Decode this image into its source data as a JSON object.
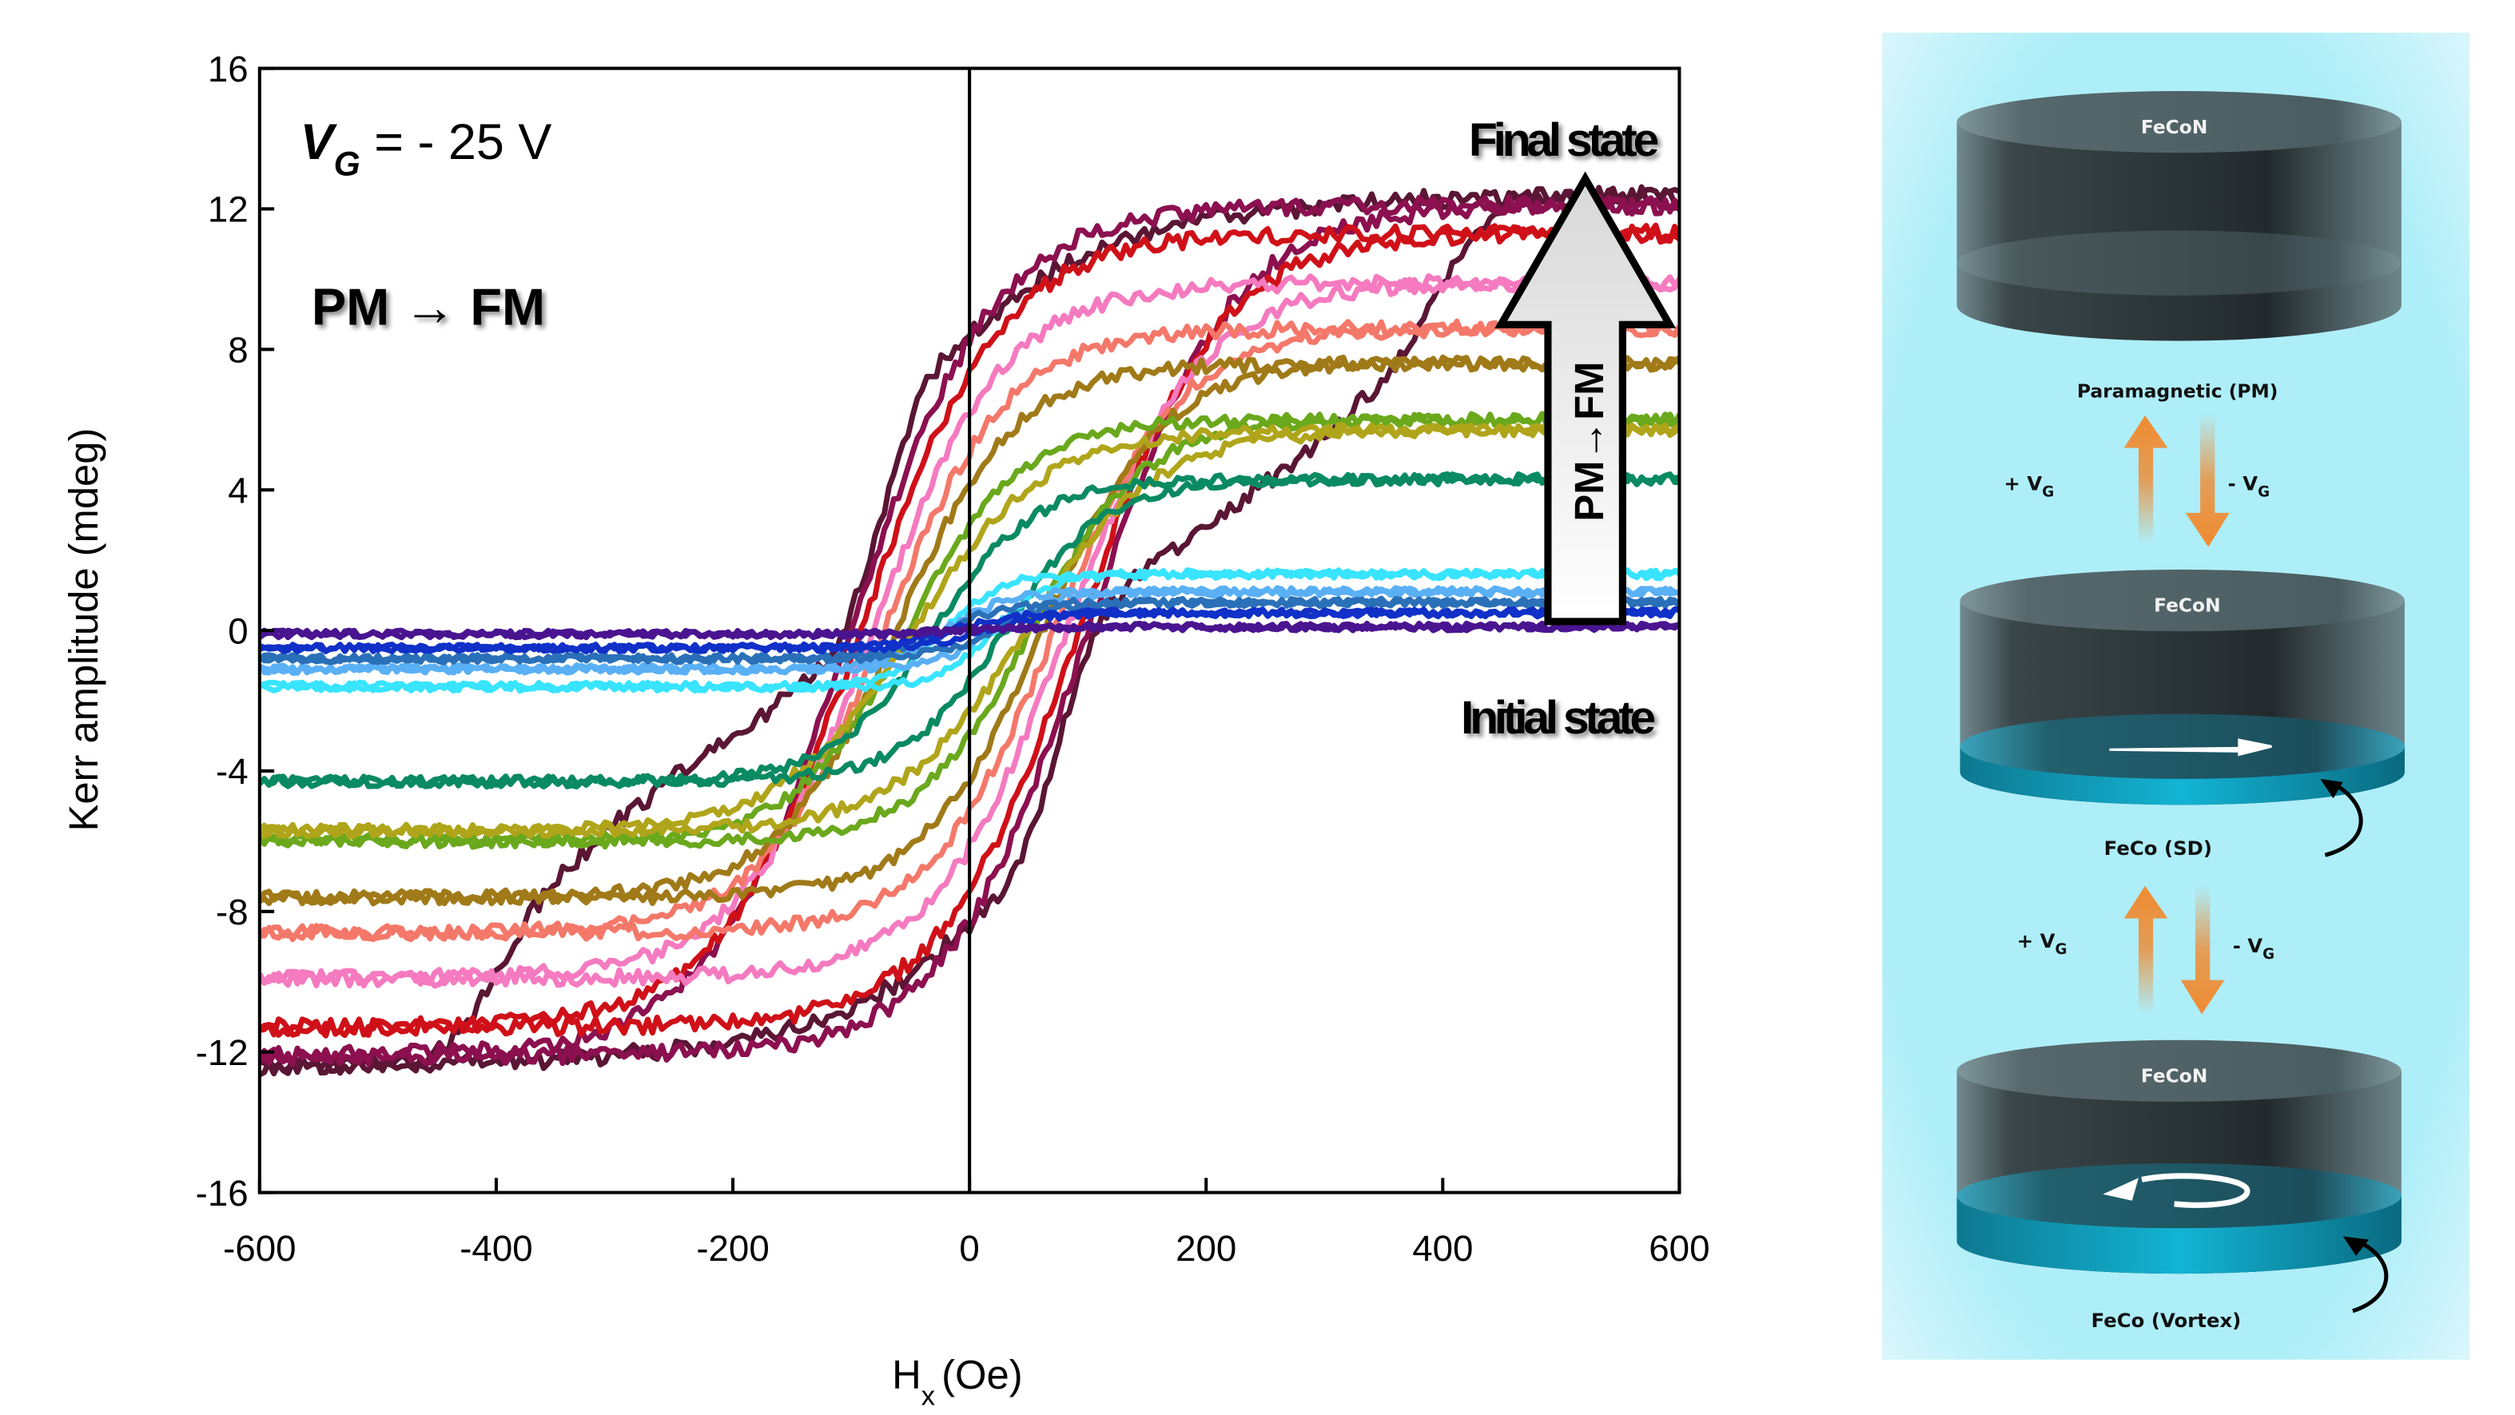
{
  "chart_data": {
    "type": "line",
    "title": "",
    "xlabel": "H",
    "xlabel_sub": "x",
    "xlabel_unit": "(Oe)",
    "ylabel": "Kerr amplitude (mdeg)",
    "xlim": [
      -600,
      600
    ],
    "ylim": [
      -16,
      16
    ],
    "xticks": [
      -600,
      -400,
      -200,
      0,
      200,
      400,
      600
    ],
    "yticks": [
      -16,
      -12,
      -8,
      -4,
      0,
      4,
      8,
      12,
      16
    ],
    "grid": false,
    "model": "each loop drawn as two branches M = Ms*tanh((H ± Hc)/w), mdeg vs Oe",
    "series": [
      {
        "color": "#5a1634",
        "Ms": 12.4,
        "Hc": 100,
        "w": 120,
        "kinked_branch": [
          [
            -600,
            -12.4
          ],
          [
            -460,
            -12.3
          ],
          [
            -430,
            -11.5
          ],
          [
            -400,
            -9.8
          ],
          [
            -370,
            -8
          ],
          [
            -340,
            -6.8
          ],
          [
            -300,
            -5.5
          ],
          [
            -250,
            -4.2
          ],
          [
            -200,
            -3
          ],
          [
            -150,
            -1.8
          ],
          [
            -120,
            -0.8
          ],
          [
            -100,
            0.5
          ],
          [
            -80,
            2.5
          ],
          [
            -60,
            5
          ],
          [
            -40,
            6.8
          ],
          [
            -20,
            7.8
          ],
          [
            0,
            8.4
          ],
          [
            50,
            9.8
          ],
          [
            100,
            10.8
          ],
          [
            200,
            11.7
          ],
          [
            300,
            12.1
          ],
          [
            400,
            12.3
          ],
          [
            600,
            12.4
          ]
        ]
      },
      {
        "color": "#8c1050",
        "Ms": 12.1,
        "Hc": 100,
        "w": 120
      },
      {
        "color": "#d01018",
        "Ms": 11.3,
        "Hc": 92,
        "w": 118
      },
      {
        "color": "#f57ac0",
        "Ms": 9.9,
        "Hc": 82,
        "w": 112
      },
      {
        "color": "#f4786a",
        "Ms": 8.6,
        "Hc": 72,
        "w": 105
      },
      {
        "color": "#a07a18",
        "Ms": 7.6,
        "Hc": 62,
        "w": 100
      },
      {
        "color": "#6aa81c",
        "Ms": 6.0,
        "Hc": 52,
        "w": 95
      },
      {
        "color": "#b0a51a",
        "Ms": 5.7,
        "Hc": 48,
        "w": 110
      },
      {
        "color": "#0a8a62",
        "Ms": 4.3,
        "Hc": 30,
        "w": 85
      },
      {
        "color": "#38e4ff",
        "Ms": 1.6,
        "Hc": 20,
        "w": 45
      },
      {
        "color": "#5ab0f5",
        "Ms": 1.1,
        "Hc": 20,
        "w": 50
      },
      {
        "color": "#2a70b8",
        "Ms": 0.8,
        "Hc": 20,
        "w": 50
      },
      {
        "color": "#1030c8",
        "Ms": 0.5,
        "Hc": 15,
        "w": 50
      },
      {
        "color": "#4a1490",
        "Ms": 0.1,
        "Hc": 5,
        "w": 50
      }
    ],
    "annotations": {
      "gate_v": "V",
      "gate_sub": "G",
      "gate_value": " = - 25 V",
      "transition": "PM → FM",
      "final": "Final state",
      "initial": "Initial state",
      "arrow_text": "PM→FM"
    }
  },
  "panel": {
    "layer_top": "FeCoN",
    "state_pm": "Paramagnetic (PM)",
    "plus_vg": "+ V",
    "minus_vg": "- V",
    "vg_sub": "G",
    "state_sd": "FeCo (SD)",
    "state_vortex": "FeCo (Vortex)",
    "colors": {
      "background": "#aeeef8",
      "arrow": "#f08a30",
      "cap": "#2b3438",
      "fecolayer": "#10aac8"
    }
  }
}
